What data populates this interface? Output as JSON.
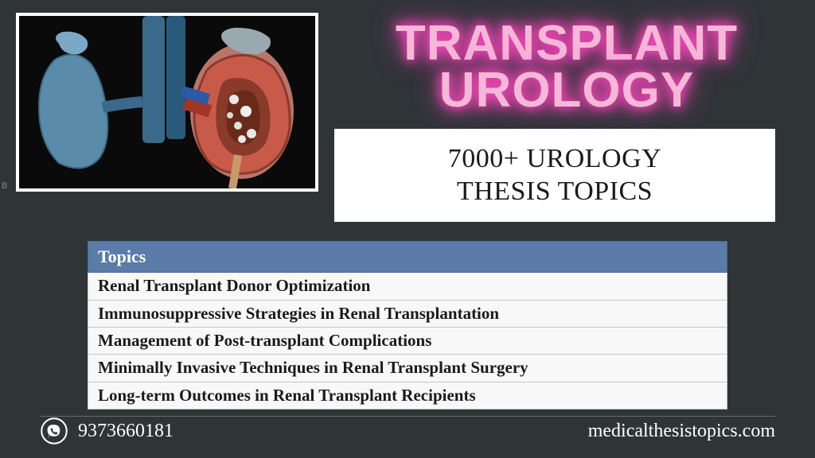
{
  "title": {
    "line1": "TRANSPLANT",
    "line2": "UROLOGY",
    "color": "#f5b8d8",
    "glow_color": "#ff4fc3",
    "fontsize": 62
  },
  "subtitle": {
    "line1": "7000+ UROLOGY",
    "line2": "THESIS TOPICS",
    "bg_color": "#ffffff",
    "text_color": "#1a1a1a",
    "fontsize": 34
  },
  "table": {
    "header": "Topics",
    "header_bg": "#5b7ba8",
    "header_color": "#ffffff",
    "row_bg": "#f8f8f8",
    "row_color": "#1a1a1a",
    "border_color": "#c8c8c8",
    "fontsize": 21,
    "rows": [
      "Renal Transplant Donor Optimization",
      "Immunosuppressive Strategies in Renal Transplantation",
      "Management of Post-transplant Complications",
      "Minimally Invasive Techniques in Renal Transplant Surgery",
      "Long-term Outcomes in Renal Transplant Recipients"
    ]
  },
  "footer": {
    "phone": "9373660181",
    "website": "medicalthesistopics.com",
    "text_color": "#ffffff",
    "fontsize": 24
  },
  "illustration": {
    "bg_color": "#0a0a0a",
    "border_color": "#ffffff",
    "kidney_left_color": "#5a8ba8",
    "kidney_right_outer": "#c85a4a",
    "kidney_right_inner": "#8a3a2a",
    "vessel_color": "#3a6a8a",
    "vessel_red": "#a03528",
    "stone_color": "#e8e8e8"
  },
  "page_bg": "#2f3437",
  "attribution": "B"
}
